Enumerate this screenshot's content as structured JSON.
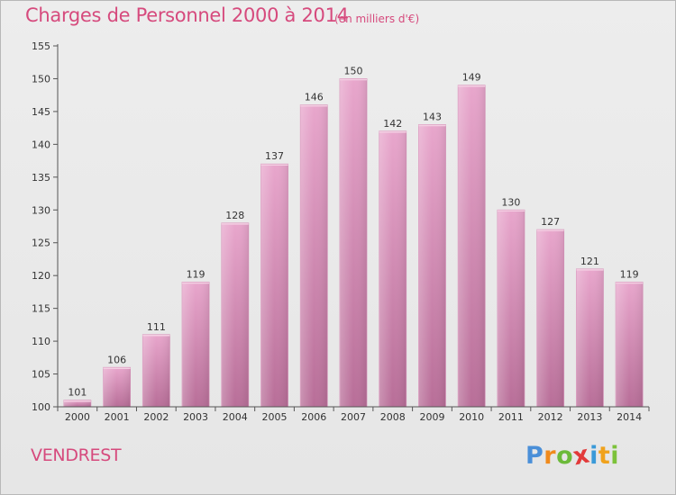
{
  "header": {
    "title": "Charges de Personnel 2000 à 2014",
    "unit": "(en milliers d'€)"
  },
  "footer": {
    "commune": "VENDREST",
    "logo_letters": [
      "P",
      "r",
      "o",
      "x",
      "i",
      "t",
      "i"
    ],
    "logo_colors": [
      "#4a8fd8",
      "#f08a1c",
      "#6cba3a",
      "#e23a3a",
      "#3a9ad8",
      "#f0a21c",
      "#7cc23a"
    ]
  },
  "colors": {
    "bar_top": "#e8a6cc",
    "bar_bottom": "#b86e98",
    "title": "#d64a7d",
    "axis": "#555555"
  },
  "chart_data": {
    "type": "bar",
    "categories": [
      "2000",
      "2001",
      "2002",
      "2003",
      "2004",
      "2005",
      "2006",
      "2007",
      "2008",
      "2009",
      "2010",
      "2011",
      "2012",
      "2013",
      "2014"
    ],
    "values": [
      101,
      106,
      111,
      119,
      128,
      137,
      146,
      150,
      142,
      143,
      149,
      130,
      127,
      121,
      119
    ],
    "ylim": [
      100,
      155
    ],
    "yticks": [
      100,
      105,
      110,
      115,
      120,
      125,
      130,
      135,
      140,
      145,
      150,
      155
    ],
    "grid": false,
    "legend": "none"
  }
}
